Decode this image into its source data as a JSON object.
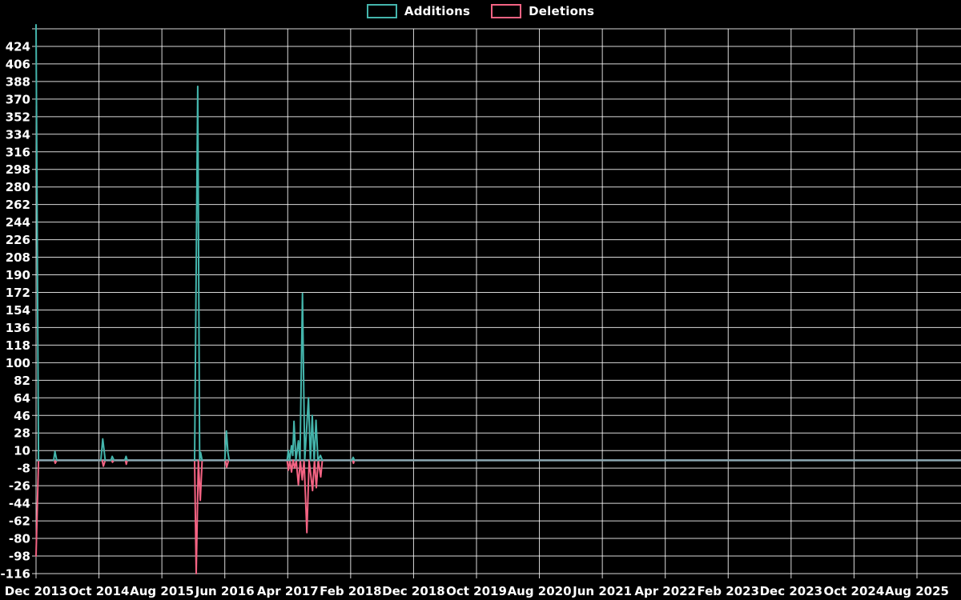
{
  "legend": {
    "items": [
      {
        "label": "Additions",
        "color": "#44B5AC"
      },
      {
        "label": "Deletions",
        "color": "#F46383"
      }
    ]
  },
  "colors": {
    "background": "#000000",
    "grid": "#FFFFFF",
    "text": "#FFFFFF",
    "additions": "#44B5AC",
    "deletions": "#F46383",
    "zero_baseline_overlap": "#8CA8B2"
  },
  "chart_data": {
    "type": "line",
    "title": "",
    "xlabel": "",
    "ylabel": "",
    "grid": true,
    "legend_position": "top-center",
    "x_axis": {
      "unit": "months since Dec 2013",
      "tick_labels": [
        "Dec 2013",
        "Oct 2014",
        "Aug 2015",
        "Jun 2016",
        "Apr 2017",
        "Feb 2018",
        "Dec 2018",
        "Oct 2019",
        "Aug 2020",
        "Jun 2021",
        "Apr 2022",
        "Feb 2023",
        "Dec 2023",
        "Oct 2024",
        "Aug 2025"
      ],
      "tick_month_offsets": [
        0,
        10,
        20,
        30,
        40,
        50,
        60,
        70,
        80,
        90,
        100,
        110,
        120,
        130,
        140
      ],
      "end_month_offset": 147
    },
    "y_axis": {
      "min": -116,
      "max": 424,
      "step": 18,
      "top_gridline_value": 442,
      "tick_labels": [
        424,
        406,
        388,
        370,
        352,
        334,
        316,
        298,
        280,
        262,
        244,
        226,
        208,
        190,
        172,
        154,
        136,
        118,
        100,
        82,
        64,
        46,
        28,
        10,
        -8,
        -26,
        -44,
        -62,
        -80,
        -98,
        -116
      ]
    },
    "series": [
      {
        "name": "Additions",
        "color": "#44B5AC",
        "note": "value 600 at month 0 is clipped at top of plot",
        "points": [
          [
            0,
            600
          ],
          [
            0.4,
            0
          ],
          [
            2.8,
            0
          ],
          [
            3.0,
            9
          ],
          [
            3.3,
            0
          ],
          [
            10.3,
            0
          ],
          [
            10.6,
            22
          ],
          [
            11.0,
            0
          ],
          [
            11.9,
            0
          ],
          [
            12.1,
            4
          ],
          [
            12.4,
            0
          ],
          [
            14.1,
            0
          ],
          [
            14.3,
            4
          ],
          [
            14.5,
            0
          ],
          [
            25.2,
            0
          ],
          [
            25.7,
            383
          ],
          [
            26.0,
            0
          ],
          [
            26.15,
            8
          ],
          [
            26.4,
            0
          ],
          [
            30.0,
            0
          ],
          [
            30.25,
            30
          ],
          [
            30.5,
            8
          ],
          [
            30.7,
            0
          ],
          [
            39.9,
            0
          ],
          [
            40.1,
            10
          ],
          [
            40.3,
            0
          ],
          [
            40.6,
            15
          ],
          [
            40.8,
            5
          ],
          [
            41.0,
            40
          ],
          [
            41.3,
            0
          ],
          [
            41.7,
            20
          ],
          [
            41.95,
            0
          ],
          [
            42.35,
            171
          ],
          [
            42.7,
            0
          ],
          [
            43.3,
            64
          ],
          [
            43.6,
            0
          ],
          [
            43.9,
            46
          ],
          [
            44.2,
            0
          ],
          [
            44.5,
            41
          ],
          [
            44.8,
            0
          ],
          [
            45.2,
            5
          ],
          [
            45.5,
            0
          ],
          [
            50.2,
            0
          ],
          [
            50.4,
            3
          ],
          [
            50.6,
            0
          ],
          [
            147,
            0
          ]
        ]
      },
      {
        "name": "Deletions",
        "color": "#F46383",
        "points": [
          [
            0,
            -98
          ],
          [
            0.4,
            0
          ],
          [
            2.9,
            0
          ],
          [
            3.05,
            -3
          ],
          [
            3.3,
            0
          ],
          [
            10.5,
            0
          ],
          [
            10.7,
            -6
          ],
          [
            11.0,
            0
          ],
          [
            12.0,
            0
          ],
          [
            12.15,
            -2
          ],
          [
            12.4,
            0
          ],
          [
            14.2,
            0
          ],
          [
            14.35,
            -4
          ],
          [
            14.5,
            0
          ],
          [
            25.2,
            0
          ],
          [
            25.45,
            -116
          ],
          [
            25.8,
            0
          ],
          [
            26.1,
            -41
          ],
          [
            26.4,
            0
          ],
          [
            30.1,
            0
          ],
          [
            30.3,
            -7
          ],
          [
            30.6,
            0
          ],
          [
            39.9,
            0
          ],
          [
            40.1,
            -10
          ],
          [
            40.35,
            0
          ],
          [
            40.6,
            -12
          ],
          [
            40.85,
            0
          ],
          [
            41.1,
            -8
          ],
          [
            41.35,
            0
          ],
          [
            41.7,
            -25
          ],
          [
            42.0,
            0
          ],
          [
            42.3,
            -20
          ],
          [
            42.6,
            0
          ],
          [
            43.05,
            -74
          ],
          [
            43.4,
            0
          ],
          [
            43.95,
            -31
          ],
          [
            44.25,
            0
          ],
          [
            44.55,
            -28
          ],
          [
            44.85,
            0
          ],
          [
            45.25,
            -17
          ],
          [
            45.5,
            0
          ],
          [
            50.3,
            0
          ],
          [
            50.45,
            -3
          ],
          [
            50.6,
            0
          ],
          [
            147,
            0
          ]
        ]
      }
    ]
  }
}
